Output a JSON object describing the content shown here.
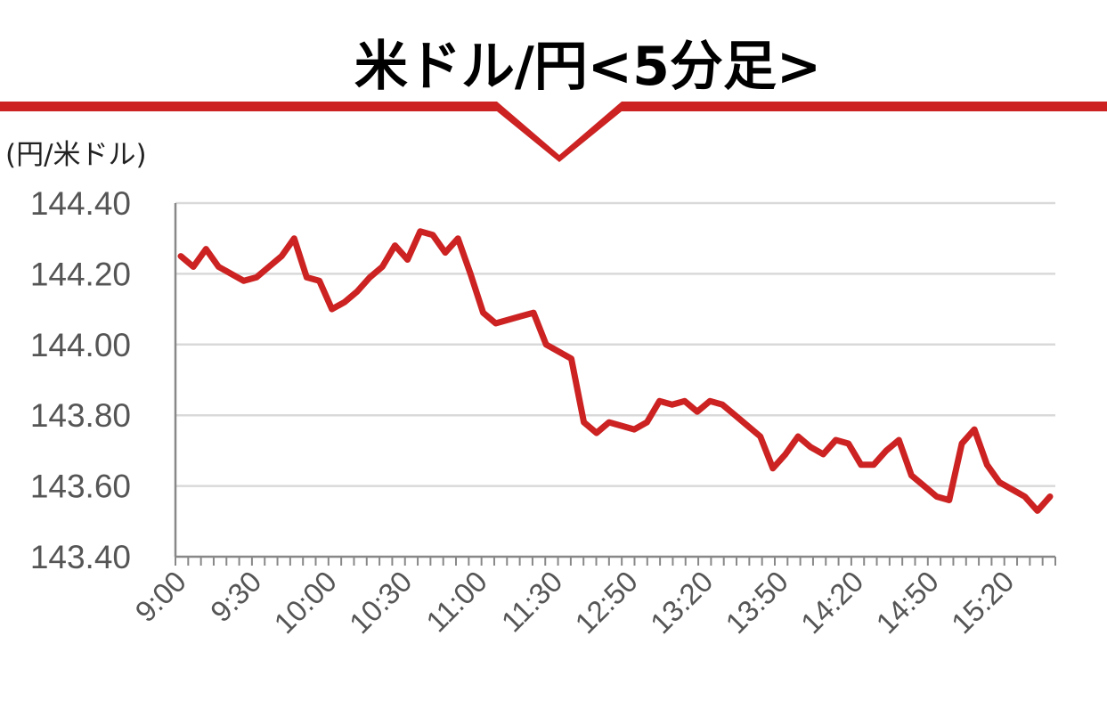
{
  "chart_data": {
    "type": "line",
    "title": "米ドル/円<5分足>",
    "ylabel": "(円/米ドル)",
    "xlabel": "",
    "ylim": [
      143.4,
      144.4
    ],
    "yticks": [
      "144.40",
      "144.20",
      "144.00",
      "143.80",
      "143.60",
      "143.40"
    ],
    "xtick_labels": [
      "9:00",
      "9:30",
      "10:00",
      "10:30",
      "11:00",
      "11:30",
      "12:50",
      "13:20",
      "13:50",
      "14:20",
      "14:50",
      "15:20"
    ],
    "grid": true,
    "series": [
      {
        "color": "#cc2222",
        "values": [
          144.25,
          144.22,
          144.27,
          144.22,
          144.2,
          144.18,
          144.19,
          144.22,
          144.25,
          144.3,
          144.19,
          144.18,
          144.1,
          144.12,
          144.15,
          144.19,
          144.22,
          144.28,
          144.24,
          144.32,
          144.31,
          144.26,
          144.3,
          144.2,
          144.09,
          144.06,
          144.07,
          144.08,
          144.09,
          144.0,
          143.98,
          143.96,
          143.78,
          143.75,
          143.78,
          143.77,
          143.76,
          143.78,
          143.84,
          143.83,
          143.84,
          143.81,
          143.84,
          143.83,
          143.8,
          143.77,
          143.74,
          143.65,
          143.69,
          143.74,
          143.71,
          143.69,
          143.73,
          143.72,
          143.66,
          143.66,
          143.7,
          143.73,
          143.63,
          143.6,
          143.57,
          143.56,
          143.72,
          143.76,
          143.66,
          143.61,
          143.59,
          143.57,
          143.53,
          143.57
        ]
      }
    ]
  },
  "colors": {
    "banner": "#cc2222",
    "line": "#cc2222",
    "grid": "#d9d9d9",
    "axis": "#888888"
  }
}
